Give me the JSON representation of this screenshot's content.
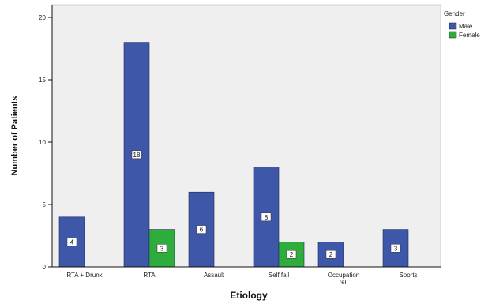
{
  "chart_data": {
    "type": "bar",
    "xlabel": "Etiology",
    "ylabel": "Number of Patients",
    "ylim": [
      0,
      20
    ],
    "yticks": [
      0,
      5,
      10,
      15,
      20
    ],
    "categories": [
      "RTA + Drunk",
      "RTA",
      "Assault",
      "Self fall",
      "Occupation rel.",
      "Sports"
    ],
    "category_lines": [
      [
        "RTA + Drunk"
      ],
      [
        "RTA"
      ],
      [
        "Assault"
      ],
      [
        "Self fall"
      ],
      [
        "Occupation",
        "rel."
      ],
      [
        "Sports"
      ]
    ],
    "series": [
      {
        "name": "Male",
        "values": [
          4,
          18,
          6,
          8,
          2,
          3
        ],
        "color": "#3e57a8"
      },
      {
        "name": "Female",
        "values": [
          null,
          3,
          null,
          2,
          null,
          null
        ],
        "color": "#2fad3c"
      }
    ],
    "legend": {
      "title": "Gender",
      "placement": "right"
    },
    "grid": false,
    "plot_background": "#efefef"
  }
}
